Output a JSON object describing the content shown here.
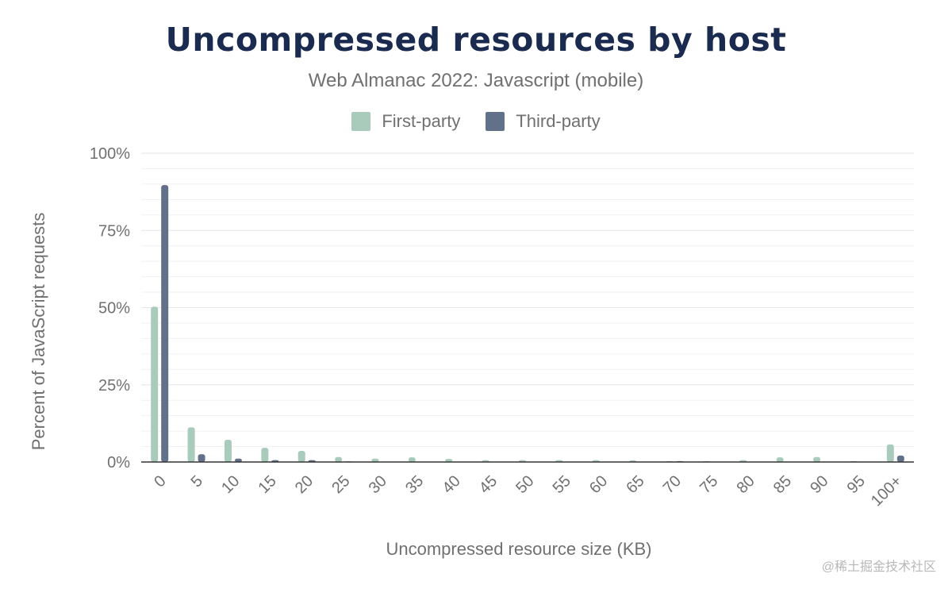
{
  "chart_data": {
    "type": "bar",
    "title": "Uncompressed resources by host",
    "subtitle": "Web Almanac 2022: Javascript (mobile)",
    "xlabel": "Uncompressed resource size (KB)",
    "ylabel": "Percent of JavaScript requests",
    "ylim": [
      0,
      100
    ],
    "yticks": [
      "0%",
      "25%",
      "50%",
      "75%",
      "100%"
    ],
    "ytick_values": [
      0,
      25,
      50,
      75,
      100
    ],
    "grid": true,
    "legend_position": "top-center",
    "categories": [
      "0",
      "5",
      "10",
      "15",
      "20",
      "25",
      "30",
      "35",
      "40",
      "45",
      "50",
      "55",
      "60",
      "65",
      "70",
      "75",
      "80",
      "85",
      "90",
      "95",
      "100+"
    ],
    "series": [
      {
        "name": "First-party",
        "color": "#a8cbbb",
        "values": [
          50.3,
          11.2,
          7.2,
          4.6,
          3.6,
          1.6,
          1.1,
          1.5,
          1.0,
          0.6,
          0.6,
          0.6,
          0.6,
          0.5,
          0.3,
          0.3,
          0.6,
          1.5,
          1.6,
          0.3,
          5.7
        ]
      },
      {
        "name": "Third-party",
        "color": "#627089",
        "values": [
          89.7,
          2.5,
          1.1,
          0.6,
          0.6,
          0.2,
          0.1,
          0.1,
          0.1,
          0.1,
          0.1,
          0.1,
          0.1,
          0.1,
          0.3,
          0.1,
          0.1,
          0.1,
          0.1,
          0.1,
          2.1
        ]
      }
    ]
  },
  "watermark": "@稀土掘金技术社区"
}
